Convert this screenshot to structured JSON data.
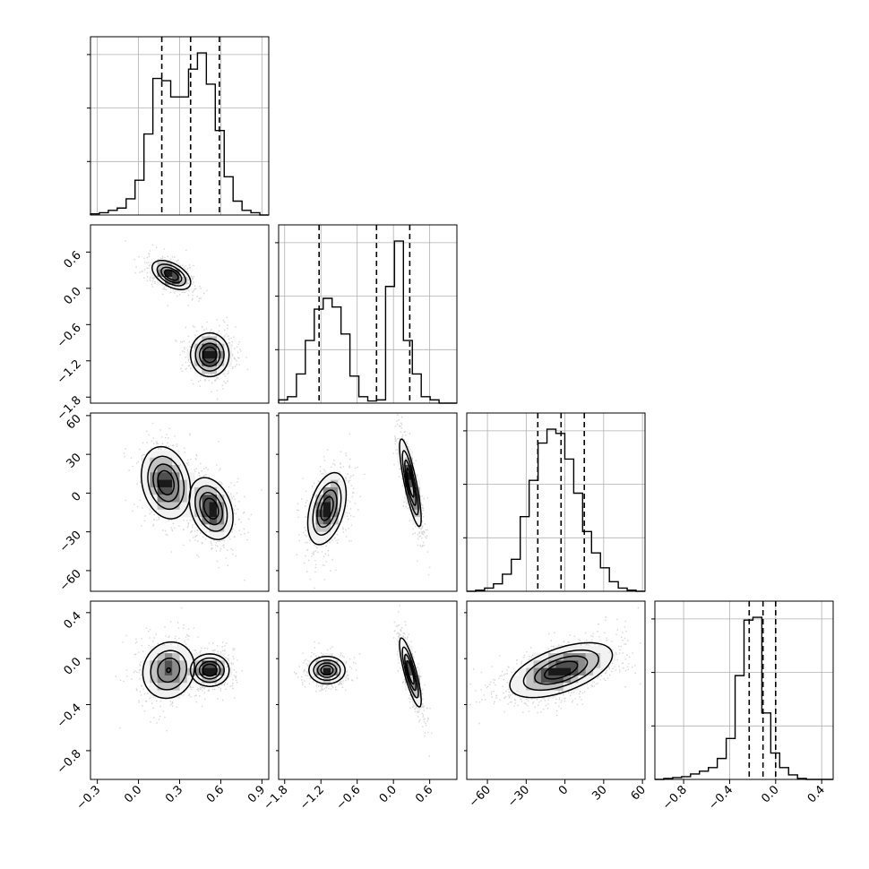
{
  "figure": {
    "type": "corner",
    "grid": true
  },
  "chart_data": {
    "type": "corner",
    "hist_bins": 20,
    "quantile_line_style": "dashed",
    "params": [
      {
        "range": [
          -0.35,
          0.95
        ],
        "ticks": [
          -0.3,
          0.0,
          0.3,
          0.6,
          0.9
        ],
        "tick_labels": [
          "−0.3",
          "0.0",
          "0.3",
          "0.6",
          "0.9"
        ],
        "quantiles": [
          0.17,
          0.38,
          0.59
        ],
        "hist": [
          1,
          2,
          4,
          6,
          14,
          30,
          70,
          118,
          116,
          102,
          102,
          126,
          140,
          113,
          73,
          33,
          12,
          4,
          2,
          0
        ]
      },
      {
        "range": [
          -1.9,
          1.05
        ],
        "ticks": [
          -1.8,
          -1.2,
          -0.6,
          0.0,
          0.6
        ],
        "tick_labels": [
          "−1.8",
          "−1.2",
          "−0.6",
          "0.0",
          "0.6"
        ],
        "quantiles": [
          -1.23,
          -0.28,
          0.27
        ],
        "hist": [
          3,
          6,
          27,
          58,
          87,
          97,
          89,
          64,
          25,
          6,
          2,
          3,
          108,
          150,
          58,
          27,
          6,
          3,
          0,
          0
        ]
      },
      {
        "range": [
          -76,
          62
        ],
        "ticks": [
          -60,
          -30,
          0,
          30,
          60
        ],
        "tick_labels": [
          "−60",
          "−30",
          "0",
          "30",
          "60"
        ],
        "quantiles": [
          -21,
          -3,
          15
        ],
        "hist": [
          0,
          1,
          3,
          7,
          16,
          30,
          70,
          104,
          139,
          152,
          148,
          124,
          92,
          56,
          36,
          22,
          9,
          3,
          1,
          0
        ]
      },
      {
        "range": [
          -1.05,
          0.5
        ],
        "ticks": [
          -0.8,
          -0.4,
          0.0,
          0.4
        ],
        "tick_labels": [
          "−0.8",
          "−0.4",
          "0.0",
          "0.4"
        ],
        "quantiles": [
          -0.23,
          -0.11,
          0.0
        ],
        "hist": [
          0,
          1,
          2,
          3,
          6,
          9,
          13,
          23,
          45,
          114,
          175,
          178,
          73,
          29,
          13,
          5,
          1,
          0,
          0,
          0
        ]
      }
    ],
    "pairs": [
      {
        "row": 1,
        "col": 0,
        "blobs": [
          {
            "x": 0.24,
            "y": 0.22,
            "sx": 0.07,
            "sy": 0.12,
            "rho": -0.5,
            "w": 1
          },
          {
            "x": 0.52,
            "y": -1.1,
            "sx": 0.07,
            "sy": 0.18,
            "rho": 0,
            "w": 1
          }
        ]
      },
      {
        "row": 2,
        "col": 0,
        "blobs": [
          {
            "x": 0.2,
            "y": 8,
            "sx": 0.09,
            "sy": 14,
            "rho": -0.2,
            "w": 1
          },
          {
            "x": 0.53,
            "y": -12,
            "sx": 0.08,
            "sy": 12,
            "rho": -0.3,
            "w": 1
          }
        ]
      },
      {
        "row": 2,
        "col": 1,
        "blobs": [
          {
            "x": -1.1,
            "y": -12,
            "sx": 0.16,
            "sy": 14,
            "rho": 0.4,
            "w": 1
          },
          {
            "x": 0.28,
            "y": 8,
            "sx": 0.09,
            "sy": 17,
            "rho": -0.82,
            "w": 1
          }
        ]
      },
      {
        "row": 3,
        "col": 0,
        "blobs": [
          {
            "x": 0.22,
            "y": -0.1,
            "sx": 0.1,
            "sy": 0.13,
            "rho": 0.1,
            "w": 1
          },
          {
            "x": 0.52,
            "y": -0.1,
            "sx": 0.07,
            "sy": 0.07,
            "rho": 0,
            "w": 1.3
          }
        ]
      },
      {
        "row": 3,
        "col": 1,
        "blobs": [
          {
            "x": -1.1,
            "y": -0.1,
            "sx": 0.15,
            "sy": 0.06,
            "rho": 0,
            "w": 1
          },
          {
            "x": 0.28,
            "y": -0.12,
            "sx": 0.09,
            "sy": 0.15,
            "rho": -0.82,
            "w": 1
          }
        ]
      },
      {
        "row": 3,
        "col": 2,
        "blobs": [
          {
            "x": -3,
            "y": -0.1,
            "sx": 20,
            "sy": 0.12,
            "rho": 0.55,
            "w": 1
          }
        ]
      }
    ]
  }
}
